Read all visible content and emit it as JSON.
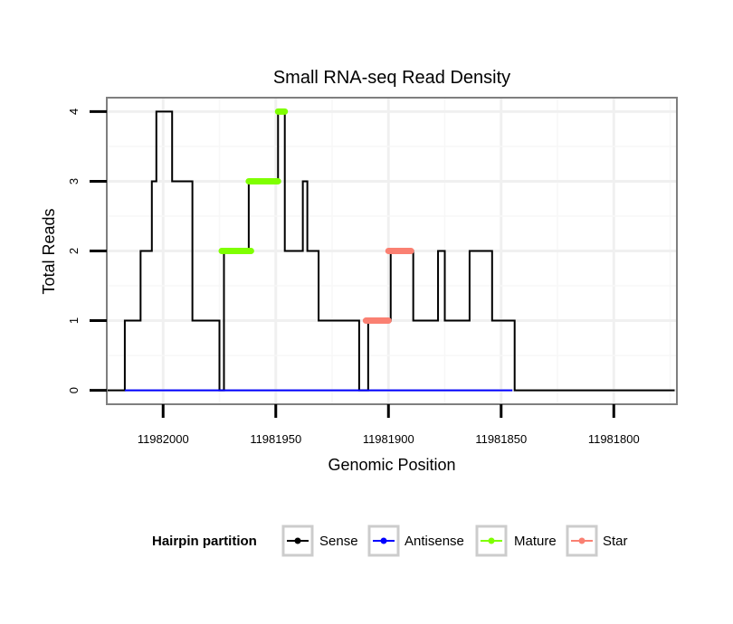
{
  "chart_data": {
    "type": "line",
    "title": "Small RNA-seq Read Density",
    "xlabel": "Genomic Position",
    "ylabel": "Total Reads",
    "xlim": [
      11982025,
      11981772
    ],
    "x_reversed": true,
    "ylim": [
      -0.2,
      4.2
    ],
    "x_ticks": [
      11982000,
      11981950,
      11981900,
      11981850,
      11981800
    ],
    "x_tick_labels": [
      "11982000",
      "11981950",
      "11981900",
      "11981850",
      "11981800"
    ],
    "y_ticks": [
      0,
      1,
      2,
      3,
      4
    ],
    "y_tick_labels": [
      "0",
      "1",
      "2",
      "3",
      "4"
    ],
    "grid": true,
    "legend": {
      "title": "Hairpin partition",
      "position": "bottom",
      "entries": [
        {
          "label": "Sense",
          "color": "#000000"
        },
        {
          "label": "Antisense",
          "color": "#0000ff"
        },
        {
          "label": "Mature",
          "color": "#7fff00"
        },
        {
          "label": "Star",
          "color": "#fa8072"
        }
      ]
    },
    "series": [
      {
        "name": "Sense",
        "color": "#000000",
        "style": "line",
        "points": [
          [
            11982025,
            0
          ],
          [
            11982017,
            0
          ],
          [
            11982017,
            1
          ],
          [
            11982010,
            1
          ],
          [
            11982010,
            2
          ],
          [
            11982005,
            2
          ],
          [
            11982005,
            3
          ],
          [
            11982003,
            3
          ],
          [
            11982003,
            4
          ],
          [
            11981996,
            4
          ],
          [
            11981996,
            3
          ],
          [
            11981987,
            3
          ],
          [
            11981987,
            1
          ],
          [
            11981975,
            1
          ],
          [
            11981975,
            0
          ],
          [
            11981973,
            0
          ],
          [
            11981973,
            2
          ],
          [
            11981962,
            2
          ],
          [
            11981962,
            3
          ],
          [
            11981949,
            3
          ],
          [
            11981949,
            4
          ],
          [
            11981946,
            4
          ],
          [
            11981946,
            2
          ],
          [
            11981943,
            2
          ],
          [
            11981938,
            2
          ],
          [
            11981938,
            3
          ],
          [
            11981936,
            3
          ],
          [
            11981936,
            2
          ],
          [
            11981931,
            2
          ],
          [
            11981931,
            1
          ],
          [
            11981913,
            1
          ],
          [
            11981913,
            0
          ],
          [
            11981909,
            0
          ],
          [
            11981909,
            1
          ],
          [
            11981899,
            1
          ],
          [
            11981899,
            2
          ],
          [
            11981889,
            2
          ],
          [
            11981889,
            1
          ],
          [
            11981878,
            1
          ],
          [
            11981878,
            2
          ],
          [
            11981875,
            2
          ],
          [
            11981875,
            1
          ],
          [
            11981864,
            1
          ],
          [
            11981864,
            2
          ],
          [
            11981854,
            2
          ],
          [
            11981854,
            1
          ],
          [
            11981844,
            1
          ],
          [
            11981844,
            0
          ],
          [
            11981773,
            0
          ]
        ]
      },
      {
        "name": "Antisense",
        "color": "#0000ff",
        "style": "line",
        "points": [
          [
            11982017,
            0
          ],
          [
            11981845,
            0
          ]
        ]
      },
      {
        "name": "Mature",
        "color": "#7fff00",
        "style": "segments",
        "segments": [
          {
            "x": [
              11981974,
              11981961
            ],
            "y": 2
          },
          {
            "x": [
              11981962,
              11981949
            ],
            "y": 3
          },
          {
            "x": [
              11981949,
              11981946
            ],
            "y": 4
          }
        ]
      },
      {
        "name": "Star",
        "color": "#fa8072",
        "style": "segments",
        "segments": [
          {
            "x": [
              11981910,
              11981900
            ],
            "y": 1
          },
          {
            "x": [
              11981900,
              11981890
            ],
            "y": 2
          }
        ]
      }
    ]
  }
}
